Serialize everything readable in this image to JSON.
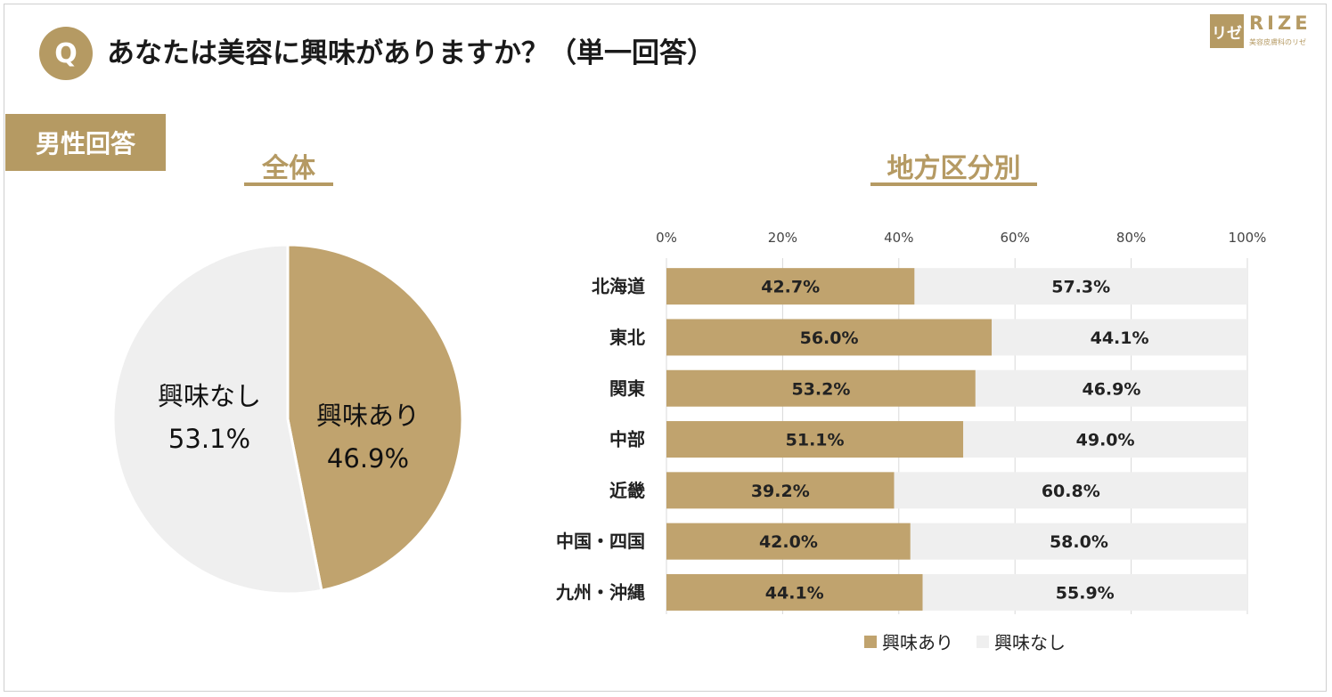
{
  "header": {
    "q_mark": "Q",
    "question": "あなたは美容に興味がありますか？（単一回答）",
    "logo_mark": "リゼ",
    "logo_word": "RIZE",
    "logo_sub": "美容皮膚科のリゼ"
  },
  "tag": {
    "label": "男性回答"
  },
  "sections": {
    "overall": "全体",
    "regional": "地方区分別"
  },
  "colors": {
    "interested": "#c0a36e",
    "not_interested": "#efefef",
    "accent": "#b59a63"
  },
  "chart_data": [
    {
      "type": "pie",
      "title": "全体",
      "slices": [
        {
          "label": "興味あり",
          "value": 46.9,
          "display": "46.9%"
        },
        {
          "label": "興味なし",
          "value": 53.1,
          "display": "53.1%"
        }
      ]
    },
    {
      "type": "bar",
      "orientation": "horizontal",
      "stacked": true,
      "title": "地方区分別",
      "categories": [
        "北海道",
        "東北",
        "関東",
        "中部",
        "近畿",
        "中国・四国",
        "九州・沖縄"
      ],
      "series": [
        {
          "name": "興味あり",
          "values": [
            42.7,
            56.0,
            53.2,
            51.1,
            39.2,
            42.0,
            44.1
          ],
          "labels": [
            "42.7%",
            "56.0%",
            "53.2%",
            "51.1%",
            "39.2%",
            "42.0%",
            "44.1%"
          ]
        },
        {
          "name": "興味なし",
          "values": [
            57.3,
            44.1,
            46.9,
            49.0,
            60.8,
            58.0,
            55.9
          ],
          "labels": [
            "57.3%",
            "44.1%",
            "46.9%",
            "49.0%",
            "60.8%",
            "58.0%",
            "55.9%"
          ]
        }
      ],
      "xlim": [
        0,
        100
      ],
      "xticks": [
        "0%",
        "20%",
        "40%",
        "60%",
        "80%",
        "100%"
      ],
      "grid": true,
      "legend": "bottom"
    }
  ]
}
